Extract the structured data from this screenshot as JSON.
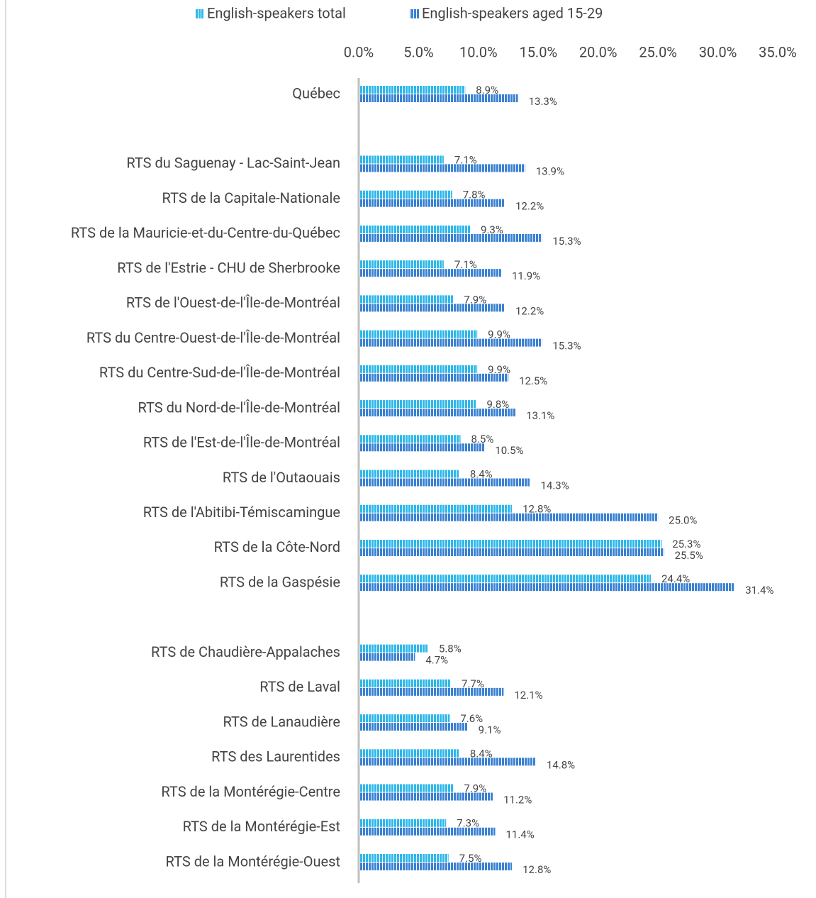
{
  "chart_data": {
    "type": "bar",
    "orientation": "horizontal",
    "categories": [
      "Québec",
      null,
      "RTS du Saguenay - Lac-Saint-Jean",
      "RTS de la Capitale-Nationale",
      "RTS de la Mauricie-et-du-Centre-du-Québec",
      "RTS de l'Estrie - CHU de Sherbrooke",
      "RTS de l'Ouest-de-l'Île-de-Montréal",
      "RTS du Centre-Ouest-de-l'Île-de-Montréal",
      "RTS du Centre-Sud-de-l'Île-de-Montréal",
      "RTS du Nord-de-l'Île-de-Montréal",
      "RTS de l'Est-de-l'Île-de-Montréal",
      "RTS de l'Outaouais",
      "RTS de l'Abitibi-Témiscamingue",
      "RTS de la Côte-Nord",
      "RTS de la Gaspésie",
      null,
      "RTS de Chaudière-Appalaches",
      "RTS de Laval",
      "RTS de Lanaudière",
      "RTS des Laurentides",
      "RTS de la Montérégie-Centre",
      "RTS de la Montérégie-Est",
      "RTS de la Montérégie-Ouest"
    ],
    "series": [
      {
        "name": "English-speakers total",
        "color": "#2fb8ea",
        "values": [
          8.9,
          null,
          7.1,
          7.8,
          9.3,
          7.1,
          7.9,
          9.9,
          9.9,
          9.8,
          8.5,
          8.4,
          12.8,
          25.3,
          24.4,
          null,
          5.8,
          7.7,
          7.6,
          8.4,
          7.9,
          7.3,
          7.5
        ],
        "value_labels": [
          "8.9%",
          null,
          "7.1%",
          "7.8%",
          "9.3%",
          "7.1%",
          "7.9%",
          "9.9%",
          "9.9%",
          "9.8%",
          "8.5%",
          "8.4%",
          "12.8%",
          "25.3%",
          "24.4%",
          null,
          "5.8%",
          "7.7%",
          "7.6%",
          "8.4%",
          "7.9%",
          "7.3%",
          "7.5%"
        ]
      },
      {
        "name": "English-speakers aged 15-29",
        "color": "#3b82d2",
        "values": [
          13.3,
          null,
          13.9,
          12.2,
          15.3,
          11.9,
          12.2,
          15.3,
          12.5,
          13.1,
          10.5,
          14.3,
          25.0,
          25.5,
          31.4,
          null,
          4.7,
          12.1,
          9.1,
          14.8,
          11.2,
          11.4,
          12.8
        ],
        "value_labels": [
          "13.3%",
          null,
          "13.9%",
          "12.2%",
          "15.3%",
          "11.9%",
          "12.2%",
          "15.3%",
          "12.5%",
          "13.1%",
          "10.5%",
          "14.3%",
          "25.0%",
          "25.5%",
          "31.4%",
          null,
          "4.7%",
          "12.1%",
          "9.1%",
          "14.8%",
          "11.2%",
          "11.4%",
          "12.8%"
        ]
      }
    ],
    "xlim": [
      0,
      35
    ],
    "xticks": [
      {
        "value": 0,
        "label": "0.0%"
      },
      {
        "value": 5,
        "label": "5.0%"
      },
      {
        "value": 10,
        "label": "10.0%"
      },
      {
        "value": 15,
        "label": "15.0%"
      },
      {
        "value": 20,
        "label": "20.0%"
      },
      {
        "value": 25,
        "label": "25.0%"
      },
      {
        "value": 30,
        "label": "30.0%"
      },
      {
        "value": 35,
        "label": "35.0%"
      }
    ],
    "legend": "top"
  }
}
